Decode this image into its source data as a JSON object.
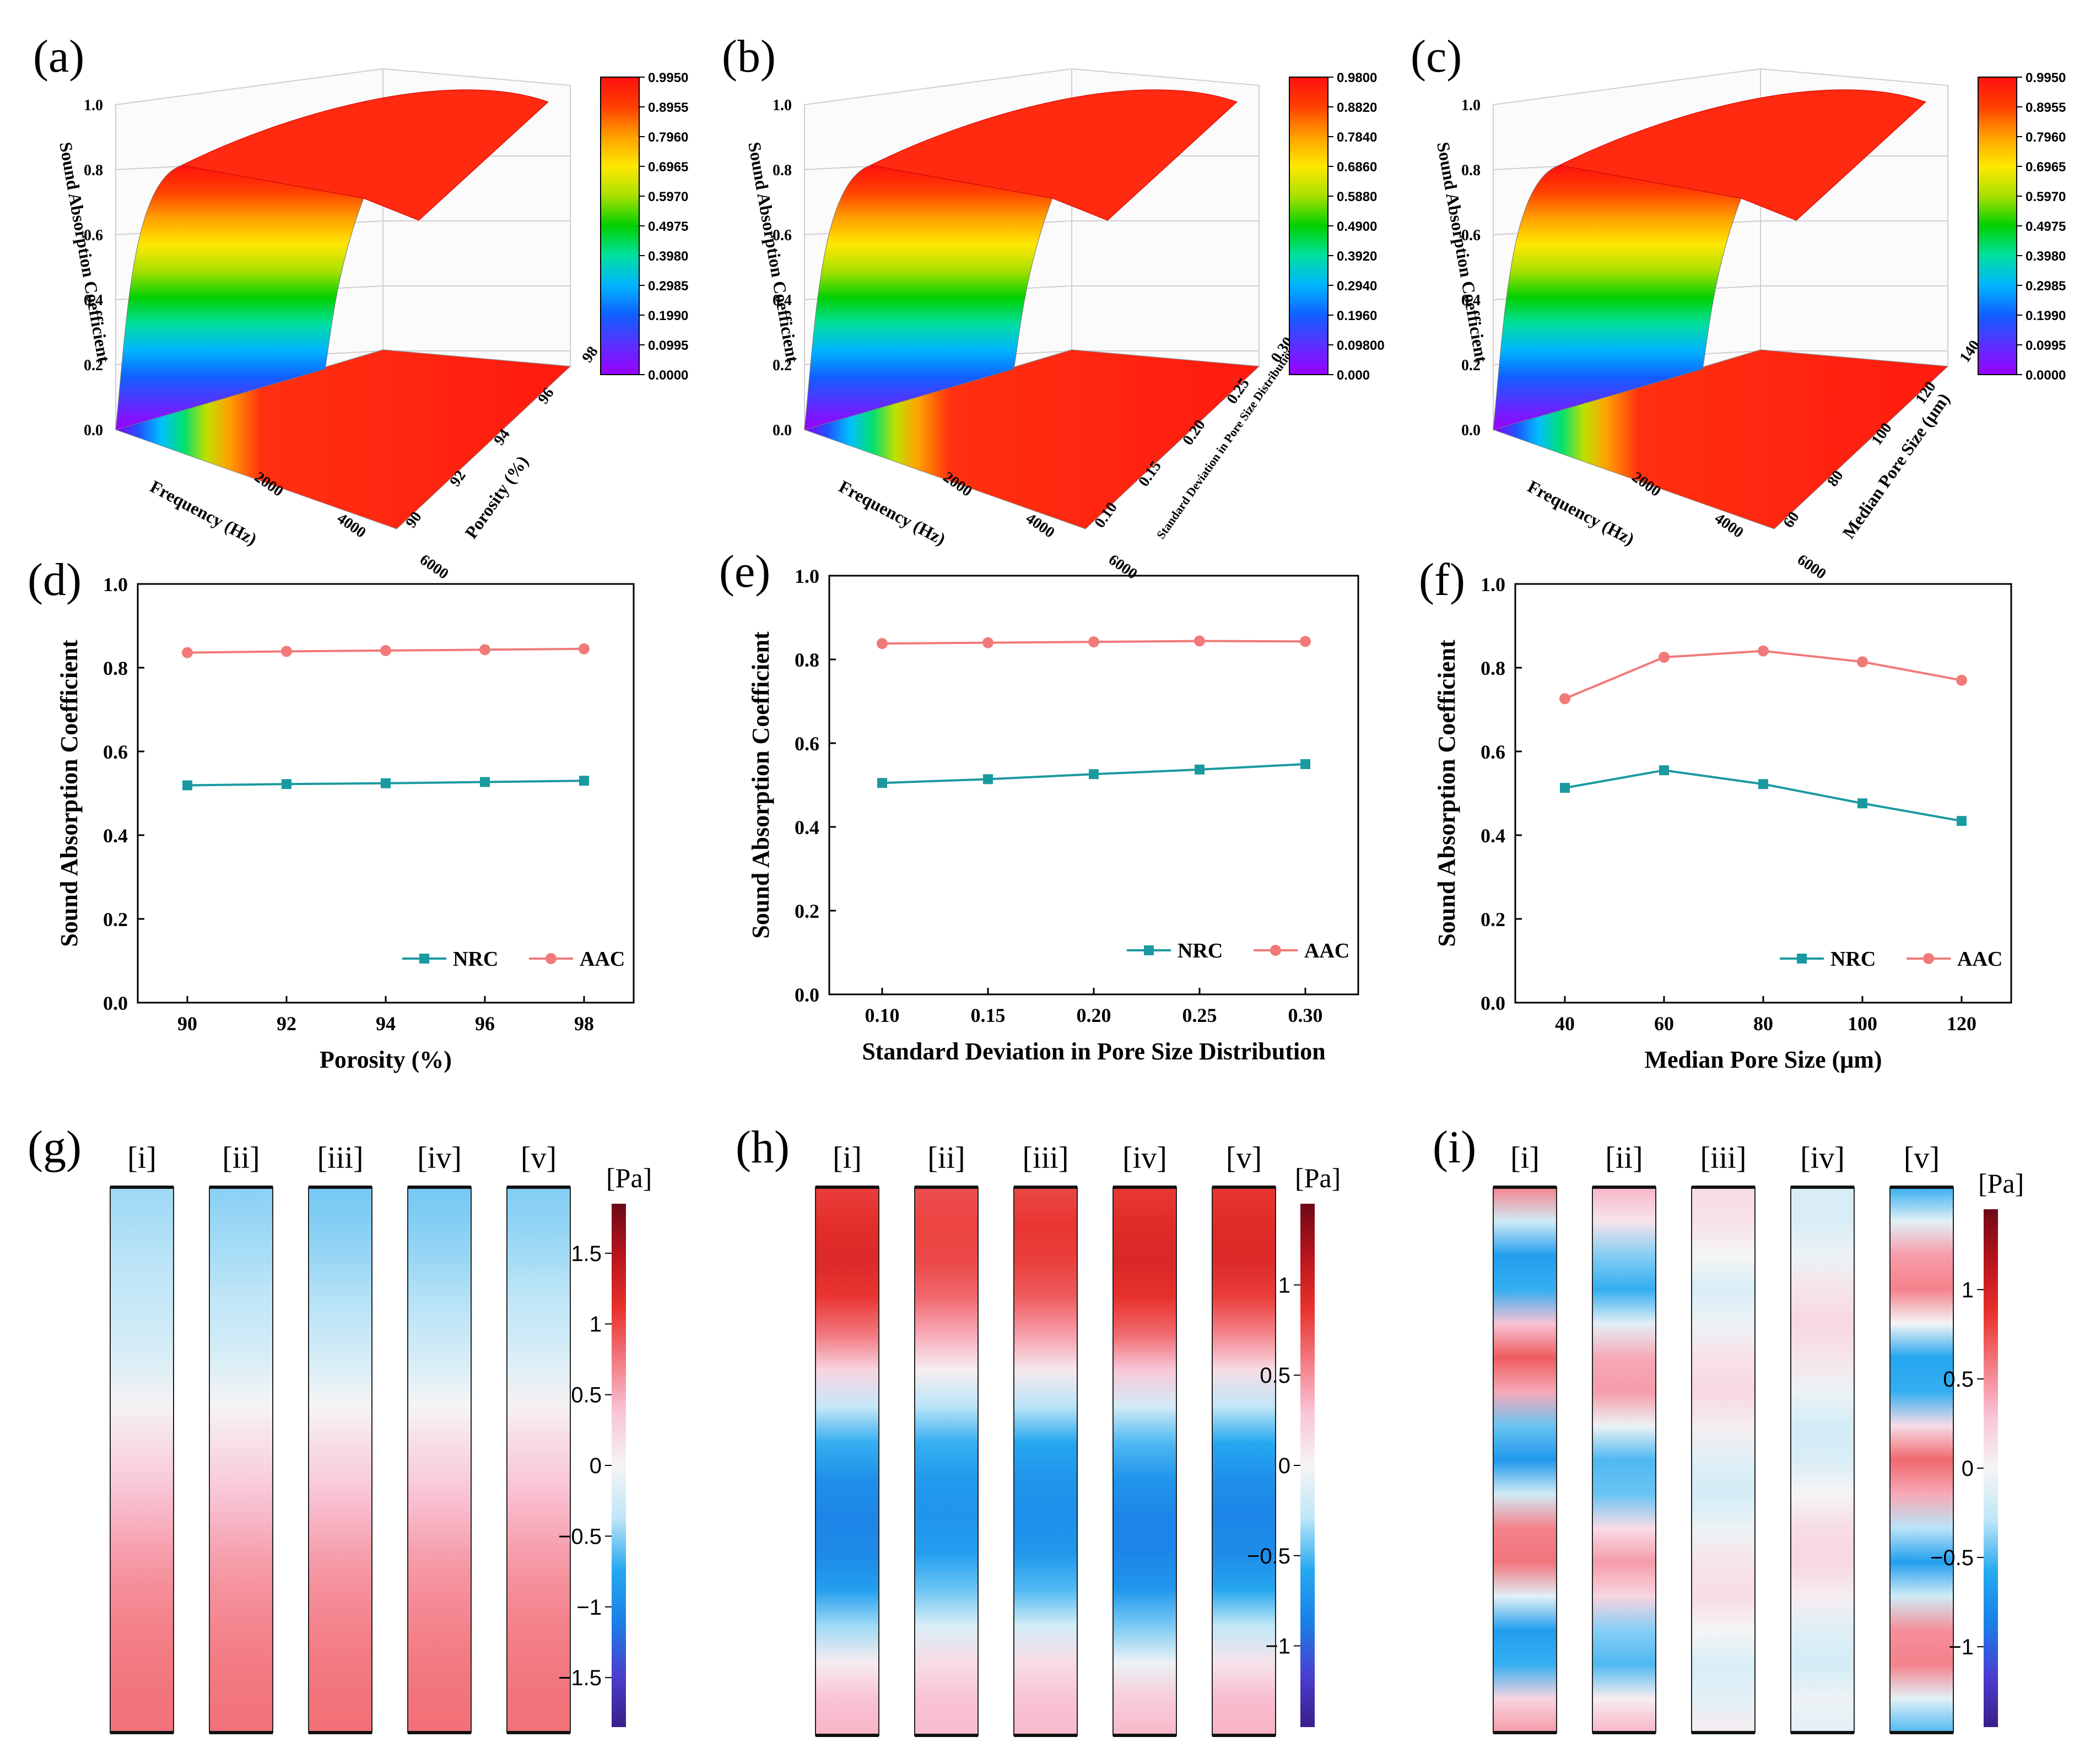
{
  "colors": {
    "nrc": "#1a9aa0",
    "aac": "#f07a78",
    "jet_stops": [
      "#9b00ff",
      "#5a30ff",
      "#1060ff",
      "#00b4ff",
      "#00e0a0",
      "#00d000",
      "#a8e000",
      "#ffe800",
      "#ffa000",
      "#ff4000",
      "#ff1010"
    ],
    "field_stops": [
      "#3b1e8a",
      "#4a3fcf",
      "#1a7fe6",
      "#25a8f0",
      "#bfe6f7",
      "#f5f5f5",
      "#f9c5d8",
      "#f37a82",
      "#e8312c",
      "#b8141c",
      "#6e0a18"
    ]
  },
  "surfaces": [
    {
      "label": "(a)",
      "zlabel": "Sound Absorption Coefficient",
      "xlabel": "Frequency (Hz)",
      "ylabel": "Porosity (%)",
      "zticks": [
        "0.0",
        "0.2",
        "0.4",
        "0.6",
        "0.8",
        "1.0"
      ],
      "xticks": [
        "2000",
        "4000",
        "6000"
      ],
      "yticks": [
        "90",
        "92",
        "94",
        "96",
        "98"
      ],
      "colorbar": [
        "0.9950",
        "0.8955",
        "0.7960",
        "0.6965",
        "0.5970",
        "0.4975",
        "0.3980",
        "0.2985",
        "0.1990",
        "0.0995",
        "0.0000"
      ]
    },
    {
      "label": "(b)",
      "zlabel": "Sound Absorption Coefficient",
      "xlabel": "Frequency (Hz)",
      "ylabel": "Standard Deviation in Pore Size Distribution",
      "zticks": [
        "0.0",
        "0.2",
        "0.4",
        "0.6",
        "0.8",
        "1.0"
      ],
      "xticks": [
        "2000",
        "4000",
        "6000"
      ],
      "yticks": [
        "0.10",
        "0.15",
        "0.20",
        "0.25",
        "0.30"
      ],
      "colorbar": [
        "0.9800",
        "0.8820",
        "0.7840",
        "0.6860",
        "0.5880",
        "0.4900",
        "0.3920",
        "0.2940",
        "0.1960",
        "0.09800",
        "0.000"
      ]
    },
    {
      "label": "(c)",
      "zlabel": "Sound Absorption Coefficient",
      "xlabel": "Frequency (Hz)",
      "ylabel": "Median Pore Size (μm)",
      "zticks": [
        "0.0",
        "0.2",
        "0.4",
        "0.6",
        "0.8",
        "1.0"
      ],
      "xticks": [
        "2000",
        "4000",
        "6000"
      ],
      "yticks": [
        "60",
        "80",
        "100",
        "120",
        "140"
      ],
      "colorbar": [
        "0.9950",
        "0.8955",
        "0.7960",
        "0.6965",
        "0.5970",
        "0.4975",
        "0.3980",
        "0.2985",
        "0.1990",
        "0.0995",
        "0.0000"
      ]
    }
  ],
  "chart_data": [
    {
      "type": "line",
      "label": "(d)",
      "x": [
        90,
        92,
        94,
        96,
        98
      ],
      "xticks": [
        "90",
        "92",
        "94",
        "96",
        "98"
      ],
      "xlim": [
        89,
        99
      ],
      "ylim": [
        0.0,
        1.0
      ],
      "yticks": [
        "0.0",
        "0.2",
        "0.4",
        "0.6",
        "0.8",
        "1.0"
      ],
      "xlabel": "Porosity (%)",
      "ylabel": "Sound Absorption Coefficient",
      "series": [
        {
          "name": "NRC",
          "values": [
            0.519,
            0.522,
            0.524,
            0.527,
            0.53
          ]
        },
        {
          "name": "AAC",
          "values": [
            0.836,
            0.839,
            0.841,
            0.843,
            0.845
          ]
        }
      ]
    },
    {
      "type": "line",
      "label": "(e)",
      "x": [
        0.1,
        0.15,
        0.2,
        0.25,
        0.3
      ],
      "xticks": [
        "0.10",
        "0.15",
        "0.20",
        "0.25",
        "0.30"
      ],
      "xlim": [
        0.075,
        0.325
      ],
      "ylim": [
        0.0,
        1.0
      ],
      "yticks": [
        "0.0",
        "0.2",
        "0.4",
        "0.6",
        "0.8",
        "1.0"
      ],
      "xlabel": "Standard Deviation in Pore Size Distribution",
      "ylabel": "Sound Absorption Coefficient",
      "series": [
        {
          "name": "NRC",
          "values": [
            0.505,
            0.514,
            0.526,
            0.537,
            0.55
          ]
        },
        {
          "name": "AAC",
          "values": [
            0.838,
            0.84,
            0.842,
            0.844,
            0.843
          ]
        }
      ]
    },
    {
      "type": "line",
      "label": "(f)",
      "x": [
        40,
        60,
        80,
        100,
        120
      ],
      "xticks": [
        "40",
        "60",
        "80",
        "100",
        "120"
      ],
      "xlim": [
        30,
        130
      ],
      "ylim": [
        0.0,
        1.0
      ],
      "yticks": [
        "0.0",
        "0.2",
        "0.4",
        "0.6",
        "0.8",
        "1.0"
      ],
      "xlabel": "Median Pore Size (μm)",
      "ylabel": "Sound Absorption Coefficient",
      "series": [
        {
          "name": "NRC",
          "values": [
            0.513,
            0.555,
            0.522,
            0.476,
            0.434
          ]
        },
        {
          "name": "AAC",
          "values": [
            0.726,
            0.825,
            0.84,
            0.814,
            0.77
          ]
        }
      ]
    }
  ],
  "fields": [
    {
      "label": "(g)",
      "unit": "[Pa]",
      "columns": [
        "[i]",
        "[ii]",
        "[iii]",
        "[iv]",
        "[v]"
      ],
      "cb_ticks": [
        "1.5",
        "1",
        "0.5",
        "0",
        "−0.5",
        "−1",
        "−1.5"
      ],
      "cb_values": [
        1.5,
        1,
        0.5,
        0,
        -0.5,
        -1,
        -1.5
      ],
      "cb_range": [
        -1.85,
        1.85
      ],
      "profiles": [
        [
          -0.45,
          -0.42,
          -0.38,
          -0.33,
          -0.26,
          -0.15,
          0.02,
          0.18,
          0.32,
          0.45,
          0.56,
          0.64,
          0.7,
          0.74,
          0.77,
          0.78
        ],
        [
          -0.5,
          -0.46,
          -0.42,
          -0.36,
          -0.28,
          -0.16,
          0.0,
          0.16,
          0.3,
          0.43,
          0.54,
          0.62,
          0.68,
          0.73,
          0.76,
          0.78
        ],
        [
          -0.55,
          -0.51,
          -0.46,
          -0.4,
          -0.31,
          -0.18,
          0.0,
          0.17,
          0.31,
          0.44,
          0.55,
          0.63,
          0.69,
          0.74,
          0.77,
          0.79
        ],
        [
          -0.55,
          -0.51,
          -0.46,
          -0.4,
          -0.31,
          -0.18,
          0.0,
          0.17,
          0.31,
          0.44,
          0.55,
          0.63,
          0.69,
          0.74,
          0.77,
          0.79
        ],
        [
          -0.52,
          -0.48,
          -0.43,
          -0.37,
          -0.28,
          -0.14,
          0.03,
          0.2,
          0.34,
          0.46,
          0.56,
          0.64,
          0.7,
          0.74,
          0.77,
          0.78
        ]
      ]
    },
    {
      "label": "(h)",
      "unit": "[Pa]",
      "columns": [
        "[i]",
        "[ii]",
        "[iii]",
        "[iv]",
        "[v]"
      ],
      "cb_ticks": [
        "1",
        "0.5",
        "0",
        "−0.5",
        "−1"
      ],
      "cb_values": [
        1,
        0.5,
        0,
        -0.5,
        -1
      ],
      "cb_range": [
        -1.45,
        1.45
      ],
      "profiles": [
        [
          0.82,
          0.9,
          0.95,
          0.85,
          0.6,
          0.2,
          -0.25,
          -0.55,
          -0.75,
          -0.82,
          -0.8,
          -0.65,
          -0.35,
          0.05,
          0.3,
          0.35
        ],
        [
          0.75,
          0.8,
          0.78,
          0.65,
          0.4,
          0.05,
          -0.3,
          -0.55,
          -0.68,
          -0.72,
          -0.65,
          -0.45,
          -0.15,
          0.15,
          0.3,
          0.32
        ],
        [
          0.78,
          0.85,
          0.82,
          0.7,
          0.45,
          0.08,
          -0.3,
          -0.58,
          -0.72,
          -0.76,
          -0.7,
          -0.5,
          -0.18,
          0.15,
          0.3,
          0.33
        ],
        [
          0.84,
          0.92,
          0.96,
          0.88,
          0.65,
          0.28,
          -0.18,
          -0.5,
          -0.72,
          -0.82,
          -0.82,
          -0.7,
          -0.42,
          -0.05,
          0.25,
          0.34
        ],
        [
          0.85,
          0.92,
          0.94,
          0.82,
          0.55,
          0.15,
          -0.28,
          -0.58,
          -0.76,
          -0.82,
          -0.78,
          -0.6,
          -0.28,
          0.1,
          0.32,
          0.36
        ]
      ]
    },
    {
      "label": "(i)",
      "unit": "[Pa]",
      "columns": [
        "[i]",
        "[ii]",
        "[iii]",
        "[iv]",
        "[v]"
      ],
      "cb_ticks": [
        "1",
        "0.5",
        "0",
        "−0.5",
        "−1"
      ],
      "cb_values": [
        1,
        0.5,
        0,
        -0.5,
        -1
      ],
      "cb_range": [
        -1.45,
        1.45
      ],
      "profiles": [
        [
          0.55,
          -0.2,
          -0.65,
          -0.55,
          0.3,
          0.7,
          0.4,
          -0.45,
          -0.7,
          -0.2,
          0.55,
          0.6,
          -0.1,
          -0.65,
          -0.55,
          0.2,
          0.45
        ],
        [
          0.35,
          0.1,
          -0.4,
          -0.55,
          -0.1,
          0.4,
          0.45,
          -0.05,
          -0.5,
          -0.45,
          0.15,
          0.45,
          0.2,
          -0.4,
          -0.5,
          0.05,
          0.35
        ],
        [
          0.15,
          0.12,
          0.0,
          -0.15,
          -0.05,
          0.12,
          0.18,
          0.05,
          -0.12,
          -0.18,
          -0.05,
          0.1,
          0.15,
          0.0,
          -0.15,
          -0.1,
          0.05
        ],
        [
          -0.15,
          -0.15,
          -0.05,
          0.1,
          0.18,
          0.1,
          -0.05,
          -0.18,
          -0.15,
          0.0,
          0.15,
          0.18,
          0.05,
          -0.12,
          -0.18,
          -0.05,
          -0.1
        ],
        [
          -0.55,
          -0.1,
          0.45,
          0.55,
          0.0,
          -0.6,
          -0.55,
          0.15,
          0.65,
          0.4,
          -0.3,
          -0.65,
          -0.2,
          0.5,
          0.55,
          -0.1,
          -0.5
        ]
      ]
    }
  ]
}
